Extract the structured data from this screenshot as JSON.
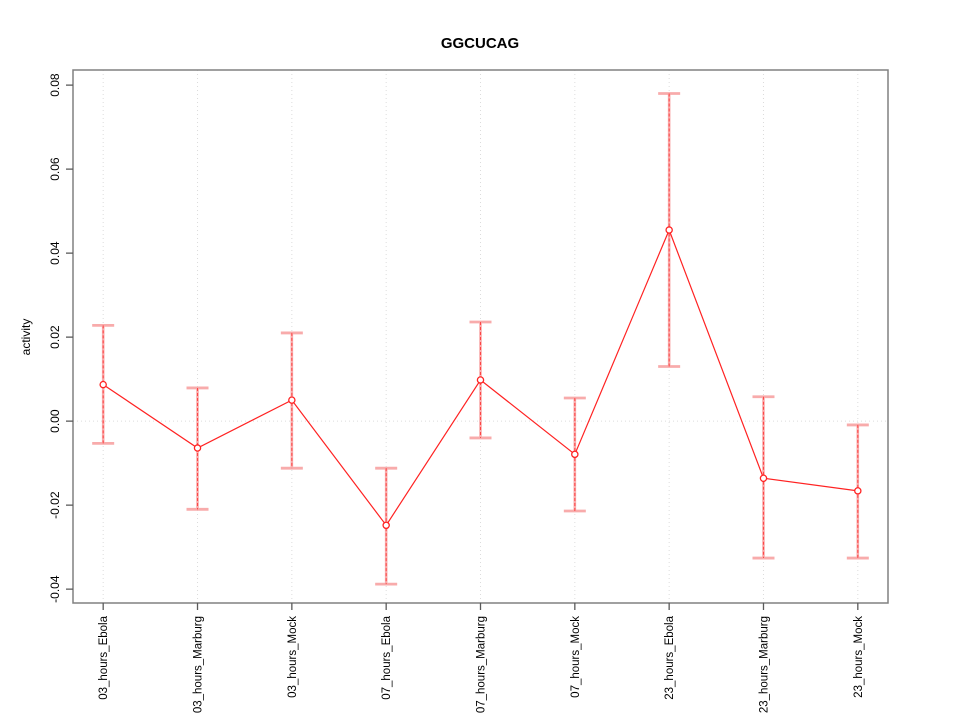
{
  "chart_data": {
    "type": "line",
    "title": "GGCUCAG",
    "xlabel": "",
    "ylabel": "activity",
    "legend": "none",
    "categories": [
      "03_hours_Ebola",
      "03_hours_Marburg",
      "03_hours_Mock",
      "07_hours_Ebola",
      "07_hours_Marburg",
      "07_hours_Mock",
      "23_hours_Ebola",
      "23_hours_Marburg",
      "23_hours_Mock"
    ],
    "series": [
      {
        "name": "GGCUCAG activity",
        "values": [
          0.0087,
          -0.0064,
          0.005,
          -0.0248,
          0.0098,
          -0.0079,
          0.0455,
          -0.0136,
          -0.0166
        ],
        "upper": [
          0.0228,
          0.0079,
          0.021,
          -0.0112,
          0.0236,
          0.0055,
          0.078,
          0.0058,
          -0.0009
        ],
        "lower": [
          -0.0053,
          -0.021,
          -0.0112,
          -0.0388,
          -0.004,
          -0.0214,
          0.013,
          -0.0326,
          -0.0326
        ]
      }
    ],
    "yticks": [
      -0.04,
      -0.02,
      0.0,
      0.02,
      0.04,
      0.06,
      0.08
    ],
    "ylim": [
      -0.0433,
      0.0836
    ],
    "grid": {
      "vertical": "dotted line at each category",
      "horizontal": "dotted line at y=0 only"
    },
    "colors": {
      "line": "#ff2222",
      "marker_stroke": "#ff2222",
      "marker_fill": "#ffffff",
      "errorbar_band": "#f8abab",
      "errorbar_dash": "#ff4444",
      "grid": "#dcdcdc",
      "axis": "#808080",
      "tick": "#5a5a5a",
      "text": "#000000"
    }
  }
}
